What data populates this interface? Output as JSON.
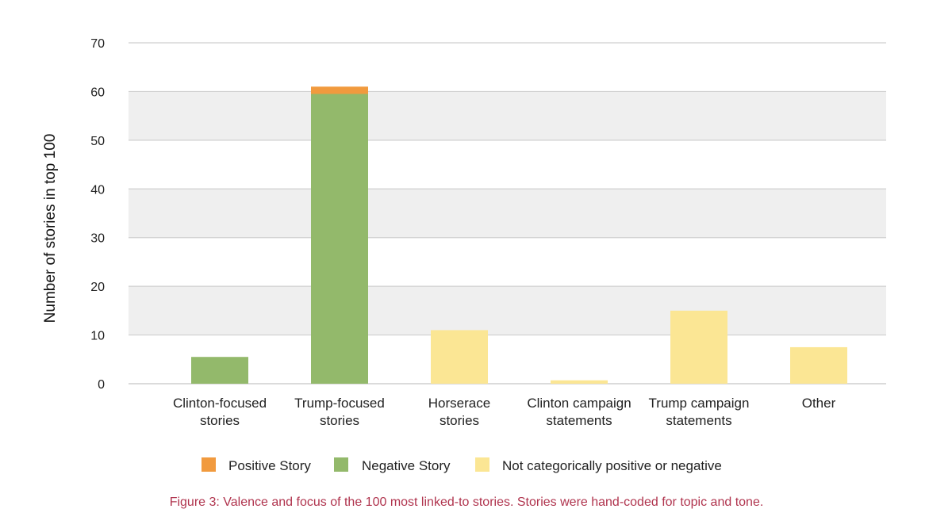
{
  "chart_data": {
    "type": "bar",
    "stacked": true,
    "categories": [
      [
        "Clinton-focused",
        "stories"
      ],
      [
        "Trump-focused",
        "stories"
      ],
      [
        "Horserace",
        "stories"
      ],
      [
        "Clinton campaign",
        "statements"
      ],
      [
        "Trump campaign",
        "statements"
      ],
      [
        "Other"
      ]
    ],
    "series": [
      {
        "name": "Negative Story",
        "color": "#93b96b",
        "values": [
          5.5,
          59.5,
          0,
          0,
          0,
          0
        ]
      },
      {
        "name": "Positive Story",
        "color": "#f19a3e",
        "values": [
          0,
          1.5,
          0,
          0,
          0,
          0
        ]
      },
      {
        "name": "Not categorically positive or negative",
        "color": "#fbe694",
        "values": [
          0,
          0,
          11,
          0.7,
          15,
          7.5
        ]
      }
    ],
    "legend_order": [
      1,
      0,
      2
    ],
    "ylabel": "Number of stories in top 100",
    "xlabel": "",
    "ylim": [
      0,
      70
    ],
    "yticks": [
      0,
      10,
      20,
      30,
      40,
      50,
      60,
      70
    ],
    "grid": true,
    "legend_position": "bottom"
  },
  "caption": "Figure 3: Valence and focus of the 100 most linked-to stories. Stories were hand-coded for topic and tone."
}
